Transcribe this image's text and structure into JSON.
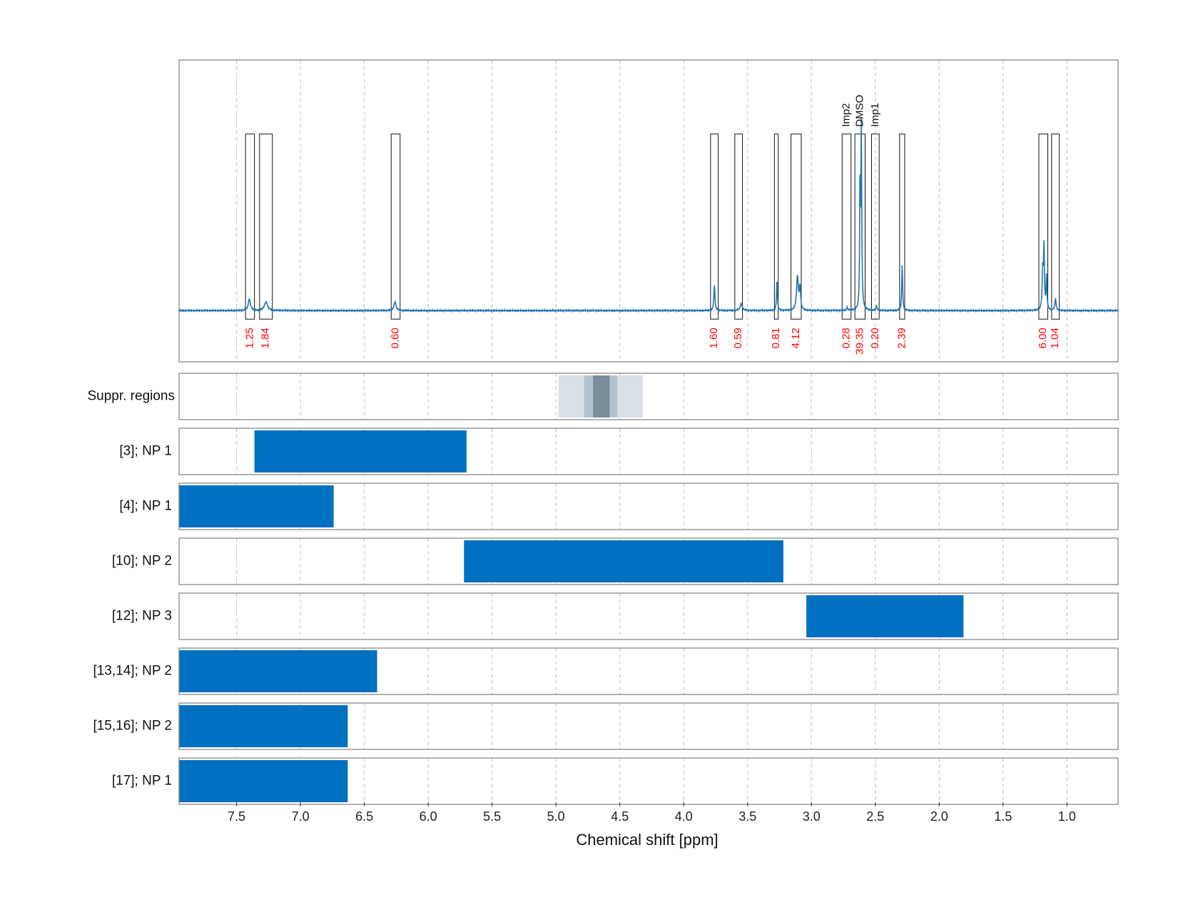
{
  "chart_data": {
    "type": "nmr-spectrum-with-range-bars",
    "xlabel": "Chemical shift [ppm]",
    "xlim": [
      7.95,
      0.6
    ],
    "x_reversed": true,
    "xticks": [
      7.5,
      7.0,
      6.5,
      6.0,
      5.5,
      5.0,
      4.5,
      4.0,
      3.5,
      3.0,
      2.5,
      2.0,
      1.5,
      1.0
    ],
    "xtick_labels": [
      "7.5",
      "7.0",
      "6.5",
      "6.0",
      "5.5",
      "5.0",
      "4.5",
      "4.0",
      "3.5",
      "3.0",
      "2.5",
      "2.0",
      "1.5",
      "1.0"
    ],
    "line_color": "#1f77b4",
    "bar_color": "#0070c0",
    "integral_label_color": "#ff0000",
    "spectrum": {
      "baseline": 0,
      "ylim": [
        -0.09,
        0.44
      ],
      "peaks": [
        {
          "x": 7.4,
          "h": 0.02,
          "w": 0.01
        },
        {
          "x": 7.27,
          "h": 0.015,
          "w": 0.015
        },
        {
          "x": 6.26,
          "h": 0.015,
          "w": 0.01
        },
        {
          "x": 3.76,
          "h": 0.045,
          "w": 0.005
        },
        {
          "x": 3.55,
          "h": 0.012,
          "w": 0.01
        },
        {
          "x": 3.27,
          "h": 0.055,
          "w": 0.004
        },
        {
          "x": 3.11,
          "h": 0.06,
          "w": 0.008
        },
        {
          "x": 3.09,
          "h": 0.04,
          "w": 0.006
        },
        {
          "x": 2.72,
          "h": 0.005,
          "w": 0.005
        },
        {
          "x": 2.61,
          "h": 0.32,
          "w": 0.004
        },
        {
          "x": 2.62,
          "h": 0.23,
          "w": 0.003
        },
        {
          "x": 2.49,
          "h": 0.008,
          "w": 0.004
        },
        {
          "x": 2.29,
          "h": 0.08,
          "w": 0.004
        },
        {
          "x": 1.18,
          "h": 0.11,
          "w": 0.004
        },
        {
          "x": 1.19,
          "h": 0.07,
          "w": 0.005
        },
        {
          "x": 1.16,
          "h": 0.06,
          "w": 0.004
        },
        {
          "x": 1.09,
          "h": 0.02,
          "w": 0.006
        }
      ]
    },
    "integration_regions": [
      {
        "x1": 7.43,
        "x2": 7.36,
        "integral": "1.25"
      },
      {
        "x1": 7.32,
        "x2": 7.22,
        "integral": "1.84"
      },
      {
        "x1": 6.29,
        "x2": 6.22,
        "integral": "0.60"
      },
      {
        "x1": 3.79,
        "x2": 3.73,
        "integral": "1.60"
      },
      {
        "x1": 3.6,
        "x2": 3.54,
        "integral": "0.59"
      },
      {
        "x1": 3.29,
        "x2": 3.26,
        "integral": "0.81"
      },
      {
        "x1": 3.16,
        "x2": 3.08,
        "integral": "4.12"
      },
      {
        "x1": 2.76,
        "x2": 2.69,
        "integral": "0.28",
        "name": "Imp2"
      },
      {
        "x1": 2.66,
        "x2": 2.58,
        "integral": "39.35",
        "name": "DMSO"
      },
      {
        "x1": 2.53,
        "x2": 2.47,
        "integral": "0.20",
        "name": "Imp1"
      },
      {
        "x1": 2.31,
        "x2": 2.27,
        "integral": "2.39"
      },
      {
        "x1": 1.22,
        "x2": 1.15,
        "integral": "6.00"
      },
      {
        "x1": 1.12,
        "x2": 1.06,
        "integral": "1.04"
      }
    ],
    "suppressed_regions": {
      "label": "Suppr. regions",
      "bands": [
        {
          "x1": 4.98,
          "x2": 4.32,
          "color": "#d9e0e7"
        },
        {
          "x1": 4.78,
          "x2": 4.52,
          "color": "#b5c3cf"
        },
        {
          "x1": 4.71,
          "x2": 4.58,
          "color": "#7b8c99"
        }
      ]
    },
    "range_rows": [
      {
        "label": "[3]; NP 1",
        "x1": 7.36,
        "x2": 5.7
      },
      {
        "label": "[4]; NP 1",
        "x1": 7.95,
        "x2": 6.74
      },
      {
        "label": "[10]; NP 2",
        "x1": 5.72,
        "x2": 3.22
      },
      {
        "label": "[12]; NP 3",
        "x1": 3.04,
        "x2": 1.81
      },
      {
        "label": "[13,14]; NP 2",
        "x1": 7.95,
        "x2": 6.4
      },
      {
        "label": "[15,16]; NP 2",
        "x1": 7.95,
        "x2": 6.63
      },
      {
        "label": "[17]; NP 1",
        "x1": 7.95,
        "x2": 6.63
      }
    ]
  }
}
